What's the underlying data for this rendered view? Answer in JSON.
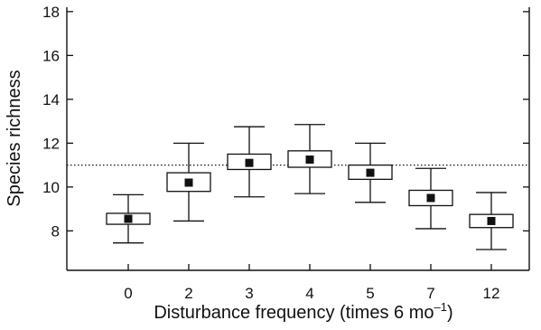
{
  "chart_data": {
    "type": "box",
    "title": "",
    "xlabel": "Disturbance frequency (times 6 mo",
    "xlabel_superscript": "–1",
    "xlabel_close": ")",
    "ylabel": "Species richness",
    "ylim": [
      6.2,
      18.2
    ],
    "yticks": [
      8,
      10,
      12,
      14,
      16,
      18
    ],
    "reference_line": {
      "y": 11,
      "style": "dotted"
    },
    "categories": [
      "0",
      "2",
      "3",
      "4",
      "5",
      "7",
      "12"
    ],
    "boxes": [
      {
        "category": "0",
        "whisker_low": 7.45,
        "q1": 8.3,
        "mean": 8.55,
        "q3": 8.8,
        "whisker_high": 9.65
      },
      {
        "category": "2",
        "whisker_low": 8.45,
        "q1": 9.8,
        "mean": 10.2,
        "q3": 10.65,
        "whisker_high": 12.0
      },
      {
        "category": "3",
        "whisker_low": 9.55,
        "q1": 10.8,
        "mean": 11.1,
        "q3": 11.5,
        "whisker_high": 12.75
      },
      {
        "category": "4",
        "whisker_low": 9.7,
        "q1": 10.9,
        "mean": 11.25,
        "q3": 11.65,
        "whisker_high": 12.85
      },
      {
        "category": "5",
        "whisker_low": 9.3,
        "q1": 10.35,
        "mean": 10.65,
        "q3": 11.0,
        "whisker_high": 12.0
      },
      {
        "category": "7",
        "whisker_low": 8.1,
        "q1": 9.15,
        "mean": 9.5,
        "q3": 9.85,
        "whisker_high": 10.85
      },
      {
        "category": "12",
        "whisker_low": 7.15,
        "q1": 8.15,
        "mean": 8.45,
        "q3": 8.75,
        "whisker_high": 9.75
      }
    ]
  }
}
